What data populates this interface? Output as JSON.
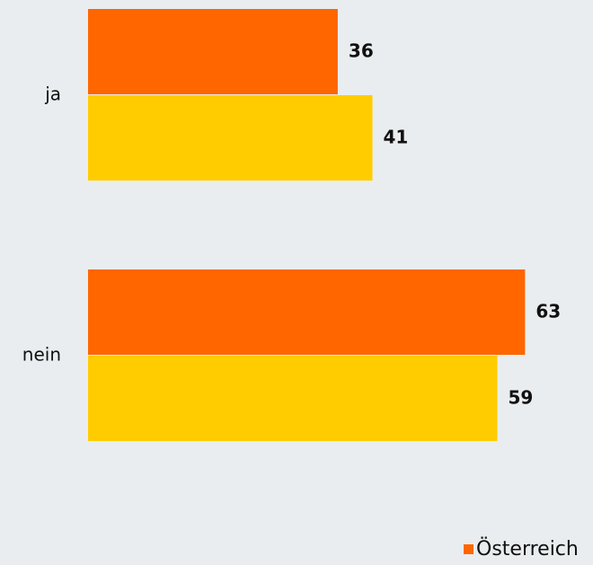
{
  "chart_data": {
    "type": "bar",
    "orientation": "horizontal",
    "categories": [
      "ja",
      "nein"
    ],
    "series": [
      {
        "name": "Österreich",
        "color": "#ff6600",
        "values": [
          36,
          63
        ]
      },
      {
        "color": "#ffcc00",
        "values": [
          41,
          59
        ]
      }
    ]
  }
}
